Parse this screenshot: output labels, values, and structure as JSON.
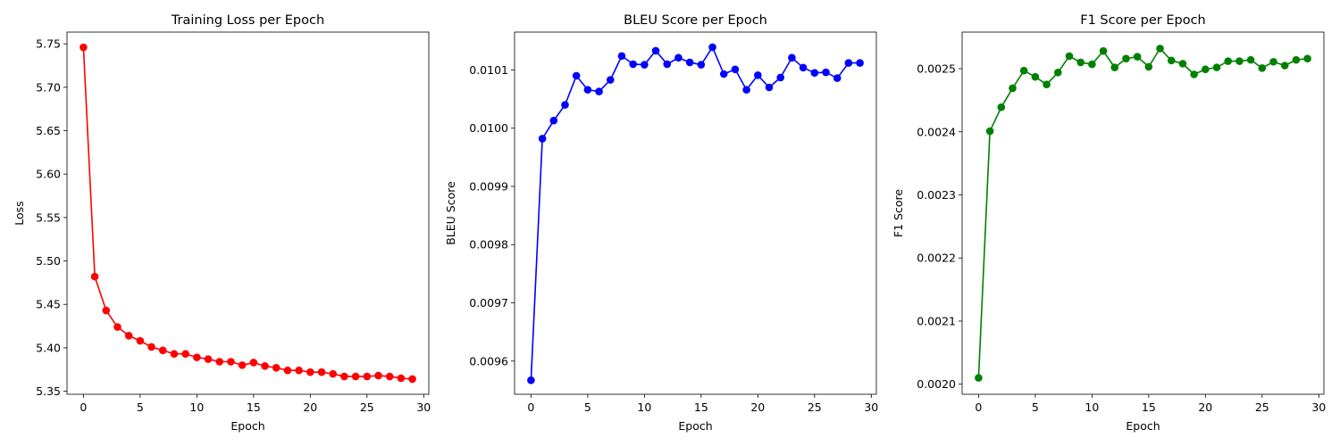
{
  "chart_data": [
    {
      "type": "line",
      "title": "Training Loss per Epoch",
      "xlabel": "Epoch",
      "ylabel": "Loss",
      "xlim": [
        -1.45,
        30.45
      ],
      "ylim": [
        5.3465,
        5.7635
      ],
      "xticks": [
        0,
        5,
        10,
        15,
        20,
        25,
        30
      ],
      "xtick_labels": [
        "0",
        "5",
        "10",
        "15",
        "20",
        "25",
        "30"
      ],
      "yticks": [
        5.35,
        5.4,
        5.45,
        5.5,
        5.55,
        5.6,
        5.65,
        5.7,
        5.75
      ],
      "ytick_labels": [
        "5.35",
        "5.40",
        "5.45",
        "5.50",
        "5.55",
        "5.60",
        "5.65",
        "5.70",
        "5.75"
      ],
      "grid": false,
      "color": "#ff0000",
      "x": [
        0,
        1,
        2,
        3,
        4,
        5,
        6,
        7,
        8,
        9,
        10,
        11,
        12,
        13,
        14,
        15,
        16,
        17,
        18,
        19,
        20,
        21,
        22,
        23,
        24,
        25,
        26,
        27,
        28,
        29
      ],
      "y": [
        5.746,
        5.482,
        5.443,
        5.424,
        5.414,
        5.408,
        5.401,
        5.397,
        5.393,
        5.393,
        5.389,
        5.387,
        5.384,
        5.384,
        5.38,
        5.383,
        5.379,
        5.377,
        5.374,
        5.374,
        5.372,
        5.372,
        5.37,
        5.367,
        5.367,
        5.367,
        5.368,
        5.367,
        5.365,
        5.364
      ]
    },
    {
      "type": "line",
      "title": "BLEU Score per Epoch",
      "xlabel": "Epoch",
      "ylabel": "BLEU Score",
      "xlim": [
        -1.45,
        30.45
      ],
      "ylim": [
        0.009543,
        0.010165
      ],
      "xticks": [
        0,
        5,
        10,
        15,
        20,
        25,
        30
      ],
      "xtick_labels": [
        "0",
        "5",
        "10",
        "15",
        "20",
        "25",
        "30"
      ],
      "yticks": [
        0.0096,
        0.0097,
        0.0098,
        0.0099,
        0.01,
        0.0101
      ],
      "ytick_labels": [
        "0.0096",
        "0.0097",
        "0.0098",
        "0.0099",
        "0.0100",
        "0.0101"
      ],
      "grid": false,
      "color": "#0000ff",
      "x": [
        0,
        1,
        2,
        3,
        4,
        5,
        6,
        7,
        8,
        9,
        10,
        11,
        12,
        13,
        14,
        15,
        16,
        17,
        18,
        19,
        20,
        21,
        22,
        23,
        24,
        25,
        26,
        27,
        28,
        29
      ],
      "y": [
        0.009567,
        0.009982,
        0.010013,
        0.01004,
        0.01009,
        0.010066,
        0.010063,
        0.010083,
        0.010124,
        0.01011,
        0.010109,
        0.010133,
        0.01011,
        0.010121,
        0.010113,
        0.010109,
        0.010139,
        0.010093,
        0.010101,
        0.010066,
        0.010091,
        0.01007,
        0.010087,
        0.010121,
        0.010104,
        0.010095,
        0.010096,
        0.010086,
        0.010112,
        0.010112
      ]
    },
    {
      "type": "line",
      "title": "F1 Score per Epoch",
      "xlabel": "Epoch",
      "ylabel": "F1 Score",
      "xlim": [
        -1.45,
        30.45
      ],
      "ylim": [
        0.001984,
        0.002558
      ],
      "xticks": [
        0,
        5,
        10,
        15,
        20,
        25,
        30
      ],
      "xtick_labels": [
        "0",
        "5",
        "10",
        "15",
        "20",
        "25",
        "30"
      ],
      "yticks": [
        0.002,
        0.0021,
        0.0022,
        0.0023,
        0.0024,
        0.0025
      ],
      "ytick_labels": [
        "0.0020",
        "0.0021",
        "0.0022",
        "0.0023",
        "0.0024",
        "0.0025"
      ],
      "grid": false,
      "color": "#008000",
      "x": [
        0,
        1,
        2,
        3,
        4,
        5,
        6,
        7,
        8,
        9,
        10,
        11,
        12,
        13,
        14,
        15,
        16,
        17,
        18,
        19,
        20,
        21,
        22,
        23,
        24,
        25,
        26,
        27,
        28,
        29
      ],
      "y": [
        0.00201,
        0.002401,
        0.002439,
        0.002469,
        0.002497,
        0.002487,
        0.002475,
        0.002494,
        0.00252,
        0.00251,
        0.002507,
        0.002528,
        0.002502,
        0.002516,
        0.002519,
        0.002503,
        0.002532,
        0.002513,
        0.002508,
        0.002491,
        0.002499,
        0.002502,
        0.002512,
        0.002512,
        0.002514,
        0.002501,
        0.002511,
        0.002505,
        0.002514,
        0.002516
      ]
    }
  ]
}
